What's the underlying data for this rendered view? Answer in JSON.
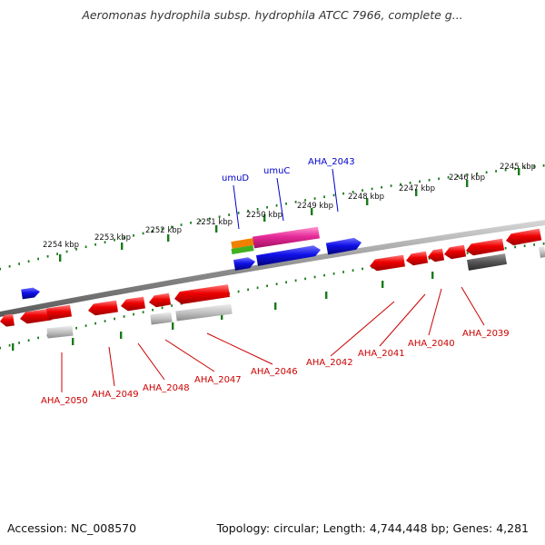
{
  "title": "Aeromonas hydrophila subsp. hydrophila ATCC 7966, complete g...",
  "footer": {
    "accession": "Accession: NC_008570",
    "summary": "Topology: circular; Length: 4,744,448 bp; Genes: 4,281"
  },
  "scale_ticks": [
    {
      "label": "2254 kbp"
    },
    {
      "label": "2253 kbp"
    },
    {
      "label": "2252 kbp"
    },
    {
      "label": "2251 kbp"
    },
    {
      "label": "2250 kbp"
    },
    {
      "label": "2249 kbp"
    },
    {
      "label": "2248 kbp"
    },
    {
      "label": "2247 kbp"
    },
    {
      "label": "2246 kbp"
    },
    {
      "label": "2245 kbp"
    }
  ],
  "gene_labels_top": [
    {
      "name": "umuD"
    },
    {
      "name": "umuC"
    },
    {
      "name": "AHA_2043"
    }
  ],
  "gene_labels_bottom": [
    {
      "name": "AHA_2050"
    },
    {
      "name": "AHA_2049"
    },
    {
      "name": "AHA_2048"
    },
    {
      "name": "AHA_2047"
    },
    {
      "name": "AHA_2046"
    },
    {
      "name": "AHA_2042"
    },
    {
      "name": "AHA_2041"
    },
    {
      "name": "AHA_2040"
    },
    {
      "name": "AHA_2039"
    }
  ],
  "colors": {
    "named_gene": "#0000cc",
    "locus_tag": "#cc0000",
    "tick": "#1a7a1a",
    "backbone": "#8a8a8a",
    "red_feature": "#e00000",
    "blue_feature": "#1010e0",
    "magenta_feature": "#e62a9a",
    "gray_feature": "#bdbdbd"
  }
}
